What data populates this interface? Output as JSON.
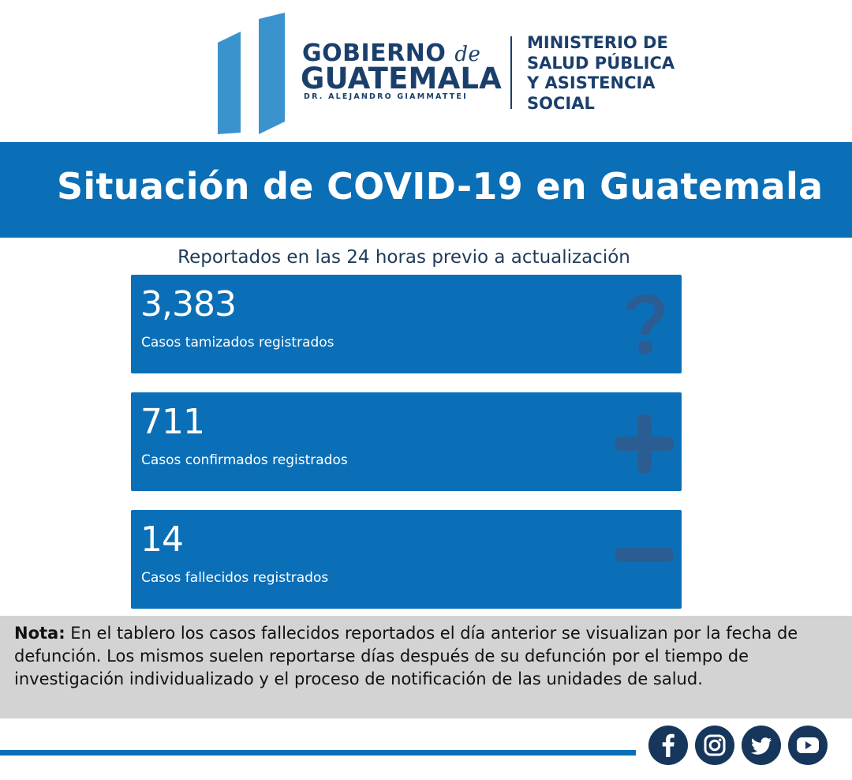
{
  "header": {
    "gob_line1_a": "GOBIERNO ",
    "gob_line1_de": "de",
    "gob_line2": "GUATEMALA",
    "gob_line3": "DR. ALEJANDRO GIAMMATTEI",
    "ministry_lines": [
      "MINISTERIO DE",
      "SALUD PÚBLICA",
      "Y ASISTENCIA",
      "SOCIAL"
    ]
  },
  "banner": {
    "title": "Situación de COVID-19 en Guatemala"
  },
  "subtitle": "Reportados en las 24 horas previo a actualización",
  "cards": [
    {
      "value": "3,383",
      "label": "Casos tamizados registrados",
      "icon": "question-icon"
    },
    {
      "value": "711",
      "label": "Casos confirmados registrados",
      "icon": "plus-icon"
    },
    {
      "value": "14",
      "label": "Casos fallecidos registrados",
      "icon": "minus-icon"
    }
  ],
  "note": {
    "label": "Nota:",
    "text": " En el tablero los casos fallecidos reportados el día anterior se visualizan por la fecha de defunción. Los mismos suelen reportarse días después de su defunción por el tiempo de investigación individualizado y el proceso de notificación de las unidades de salud."
  },
  "social": [
    "facebook-icon",
    "instagram-icon",
    "twitter-icon",
    "youtube-icon"
  ],
  "colors": {
    "brand_blue": "#0b6fb7",
    "navy": "#1b3f6b",
    "note_bg": "#d3d3d3",
    "icon_dark": "#16365c"
  }
}
